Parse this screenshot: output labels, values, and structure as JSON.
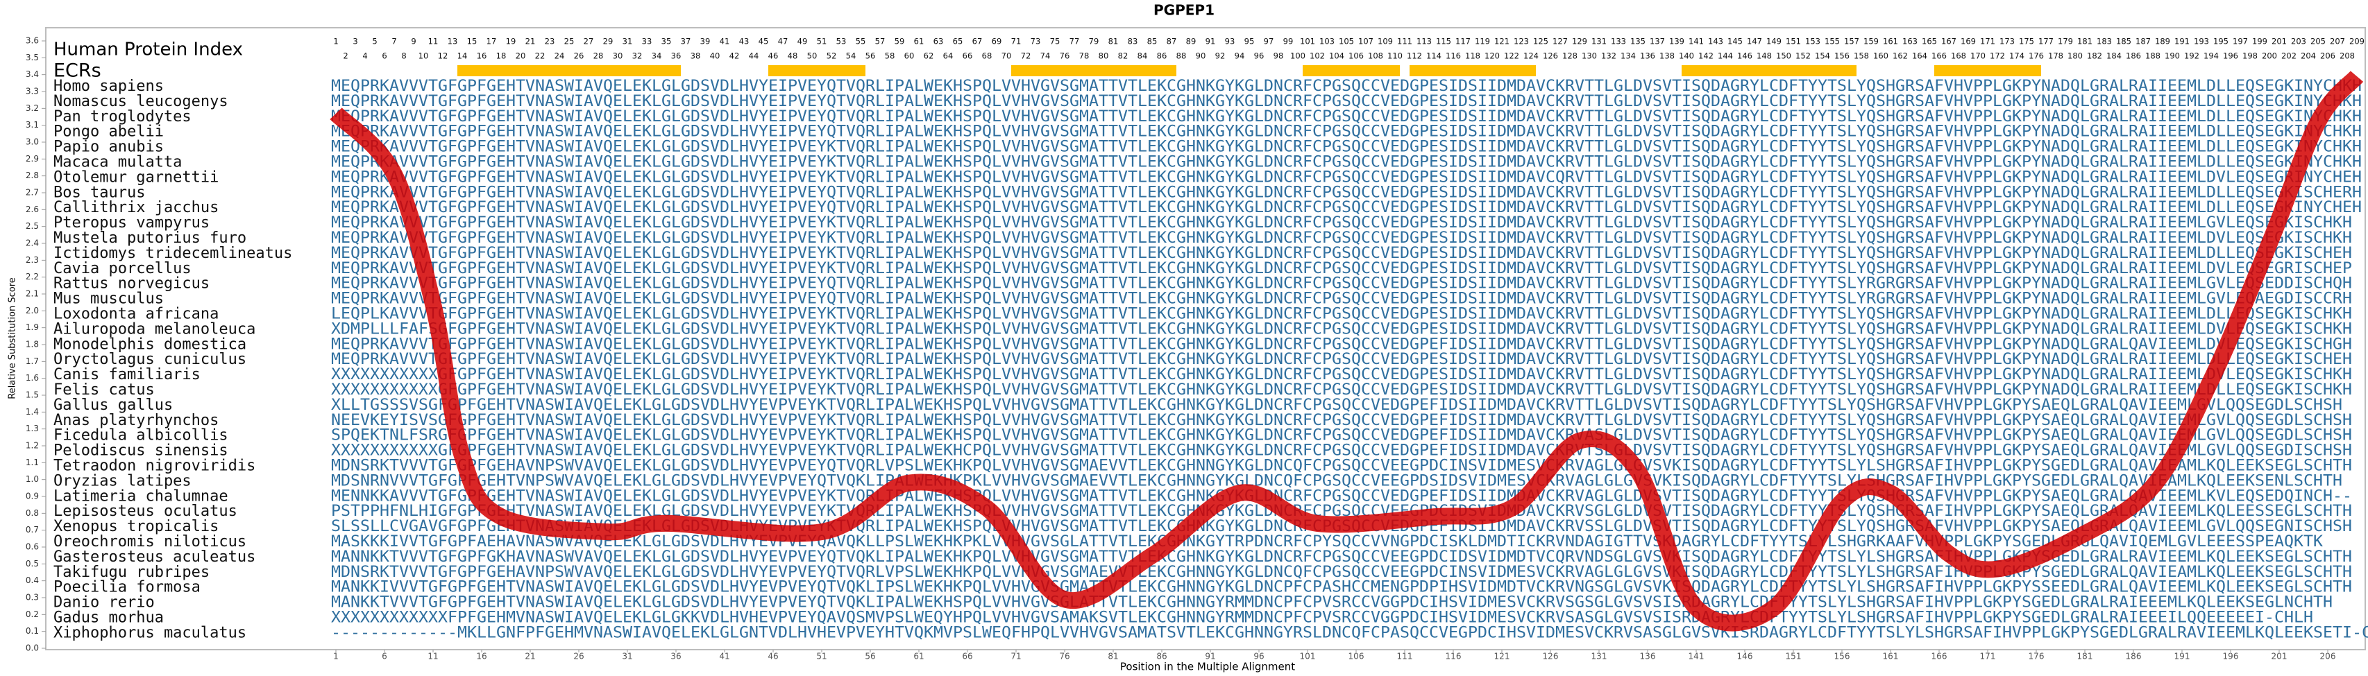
{
  "chart_data": {
    "type": "line",
    "title": "PGPEP1",
    "x_label": "Position in the Multiple Alignment",
    "y_label": "Relative Substitution Score",
    "xlim": [
      1,
      209
    ],
    "ylim": [
      0,
      3.6
    ],
    "xticks": [
      1,
      6,
      11,
      16,
      21,
      26,
      31,
      36,
      41,
      46,
      51,
      56,
      61,
      66,
      71,
      76,
      81,
      86,
      91,
      96,
      101,
      106,
      111,
      116,
      121,
      126,
      131,
      136,
      141,
      146,
      151,
      156,
      161,
      166,
      171,
      176,
      181,
      186,
      191,
      196,
      201,
      206
    ],
    "yticks": [
      {
        "value": 0,
        "label": "0.0"
      },
      0.1,
      0.2,
      0.3,
      0.4,
      0.5,
      0.6,
      0.7,
      0.8,
      0.9,
      {
        "value": 1,
        "label": "1.0"
      },
      1.1,
      1.2,
      1.3,
      1.4,
      1.5,
      1.6,
      1.7,
      1.8,
      1.9,
      {
        "value": 2,
        "label": "2.0"
      },
      2.1,
      2.2,
      2.3,
      2.4,
      2.5,
      2.6,
      2.7,
      2.8,
      2.9,
      {
        "value": 3,
        "label": "3.0"
      },
      3.1,
      3.2,
      3.3,
      3.4,
      3.5,
      3.6
    ],
    "x": [
      1,
      7,
      11,
      14,
      18,
      29,
      35,
      51,
      60,
      68,
      76,
      85,
      94,
      102,
      114,
      122,
      129,
      135,
      141,
      149,
      156,
      161,
      167,
      172,
      180,
      188,
      194,
      200,
      205,
      209
    ],
    "series": [
      {
        "color": "#d40000",
        "values": [
          3.17,
          2.81,
          2.04,
          1.14,
          0.78,
          0.69,
          0.74,
          0.69,
          0.98,
          0.83,
          0.29,
          0.55,
          0.92,
          0.74,
          0.78,
          0.83,
          1.23,
          1.05,
          0.24,
          0.24,
          0.87,
          0.92,
          0.56,
          0.47,
          0.65,
          0.96,
          1.59,
          2.4,
          3.12,
          3.39
        ]
      }
    ],
    "alignment": {
      "index_title": "Human Protein Index",
      "index": [
        1,
        2,
        3,
        4,
        5,
        6,
        7,
        8,
        9,
        10,
        11,
        12,
        13,
        14,
        15,
        16,
        17,
        18,
        19,
        20,
        21,
        22,
        23,
        24,
        25,
        26,
        27,
        28,
        29,
        30,
        31,
        32,
        33,
        34,
        35,
        36,
        37,
        38,
        39,
        40,
        41,
        42,
        43,
        44,
        45,
        46,
        47,
        48,
        49,
        50,
        51,
        52,
        53,
        54,
        55,
        56,
        57,
        58,
        59,
        60,
        61,
        62,
        63,
        64,
        65,
        66,
        67,
        68,
        69,
        70,
        71,
        72,
        73,
        74,
        75,
        76,
        77,
        78,
        79,
        80,
        81,
        82,
        83,
        84,
        85,
        86,
        87,
        88,
        89,
        90,
        91,
        92,
        93,
        94,
        95,
        96,
        97,
        98,
        99,
        100,
        101,
        102,
        103,
        104,
        105,
        106,
        107,
        108,
        109,
        110,
        111,
        112,
        113,
        114,
        115,
        116,
        117,
        118,
        119,
        120,
        121,
        122,
        123,
        124,
        125,
        126,
        127,
        128,
        129,
        130,
        131,
        132,
        133,
        134,
        135,
        136,
        137,
        138,
        139,
        140,
        141,
        142,
        143,
        144,
        145,
        146,
        147,
        148,
        149,
        150,
        151,
        152,
        153,
        154,
        155,
        156,
        157,
        158,
        159,
        160,
        161,
        162,
        163,
        164,
        165,
        166,
        167,
        168,
        169,
        170,
        171,
        172,
        173,
        174,
        175,
        176,
        177,
        178,
        179,
        180,
        181,
        182,
        183,
        184,
        185,
        186,
        187,
        188,
        189,
        190,
        191,
        192,
        193,
        194,
        195,
        196,
        197,
        198,
        199,
        200,
        201,
        202,
        203,
        204,
        205,
        206,
        207,
        208,
        209
      ],
      "ecr_label": "ECRs",
      "ecrs": [
        {
          "start": 14,
          "end": 36
        },
        {
          "start": 46,
          "end": 55
        },
        {
          "start": 71,
          "end": 87
        },
        {
          "start": 101,
          "end": 110
        },
        {
          "start": 112,
          "end": 124
        },
        {
          "start": 140,
          "end": 157
        },
        {
          "start": 166,
          "end": 176
        }
      ],
      "rows": [
        {
          "name": "Homo sapiens",
          "sequence": "MEQPRKAVVVTGFGPFGEHTVNASWIAVQELEKLGLGDSVDLHVYEIPVEYQTVQRLIPALWEKHSPQLVVHVGVSGMATTVTLEKCGHNKGYKGLDNCRFCPGSQCCVEDGPESIDSIIDMDAVCKRVTTLGLDVSVTISQDAGRYLCDFTYYTSLYQSHGRSAFVHVPPLGKPYNADQLGRALRAIIEEMLDLLEQSEGKINYCHKH"
        },
        {
          "name": "Nomascus leucogenys",
          "sequence": "MEQPRKAVVVTGFGPFGEHTVNASWIAVQELEKLGLGDSVDLHVYEIPVEYQTVQRLIPALWEKHSPQLVVHVGVSGMATTVTLEKCGHNKGYKGLDNCRFCPGSQCCVEDGPESIDSIIDMDAVCKRVTTLGLDVSVTISQDAGRYLCDFTYYTSLYQSHGRSAFVHVPPLGKPYNADQLGRALRAIIEEMLDLLEQSEGKINYCHKH"
        },
        {
          "name": "Pan troglodytes",
          "sequence": "MEQPRKAVVVTGFGPFGEHTVNASWIAVQELEKLGLGDSVDLHVYEIPVEYQTVQRLIPALWEKHSPQLVVHVGVSGMATTVTLEKCGHNKGYKGLDNCRFCPGSQCCVEDGPESIDSIIDMDAVCKRVTTLGLDVSVTISQDAGRYLCDFTYYTSLYQSHGRSAFVHVPPLGKPYNADQLGRALRAIIEEMLDLLEQSEGKINYCHKH"
        },
        {
          "name": "Pongo abelii",
          "sequence": "MEQPRKAVVVTGFGPFGEHTVNASWIAVQELEKLGLGDSVDLHVYEIPVEYQTVQRLIPALWEKHSPQLVVHVGVSGMATTVTLEKCGHNKGYKGLDNCRFCPGSQCCVEDGPESIDSIIDMDAVCKRVTTLGLDVSVTISQDAGRYLCDFTYYTSLYQSHGRSAFVHVPPLGKPYNADQLGRALRAIIEEMLDLLEQSEGKINYCHKH"
        },
        {
          "name": "Papio anubis",
          "sequence": "MEQPRKAVVVTGFGPFGEHTVNASWIAVQELEKLGLGDSVDLHVYEIPVEYKTVQRLIPALWEKHSPQLVVHVGVSGMATTVTLEKCGHNKGYKGLDNCRFCPGSQCCVEDGPESIDSIIDMDAVCKRVTTLGLDVSVTISQDAGRYLCDFTYYTSLYQSHGRSAFVHVPPLGKPYNADQLGRALRAIIEEMLDLLEQSEGKINYCHKH"
        },
        {
          "name": "Macaca mulatta",
          "sequence": "MEQPRKAVVVTGFGPFGEHTVNASWIAVQELEKLGLGDSVDLHVYEIPVEYKTVQRLIPALWEKHSPQLVVHVGVSGMATTVTLEKCGHNKGYKGLDNCRFCPGSQCCVEDGPESIDSIIDMDAVCKRVTTLGLDVSVTISQDAGRYLCDFTYYTSLYQSHGRSAFVHVPPLGKPYNADQLGRALRAIIEEMLDLLEQSEGKINYCHKH"
        },
        {
          "name": "Otolemur garnettii",
          "sequence": "MEQPRKAVVVTGFGPFGEHTVNASWIAVQELEKLGLGDSVDLHVYEIPVEYKTVQRLIPALWEKHSPQLVVHVGVSGMATTVTLEKCGHNKGYKGLDNCRFCPGSQCCVEDGPESIDSIIDMDAVCQRVTTLGLDVSVTISQDAGRYLCDFTYYTSLYQSHGRSAFVHVPPLGKPYNADQLGRALRAIIEEMLDVLEQSEGRINYCHEH"
        },
        {
          "name": "Bos taurus",
          "sequence": "MEQPRKAVVVTGFGPFGEHTVNASWIAVQELEKLGLGDSVDLHVYEIPVEYQTVQRLIPALWEKHSPQLVVHVGVSGMATTVTLEKCGHNKGYKGLDNCRFCPGSQCCVEDGPESIDSIIDMDAVCKRVTTLGLDVSVTISQDAGRYLCDFTYYTSLYQSHGRSAFVHVPPLGKPYNADQLGRALRAIIEEMLDLLEQSEGKISCHERH"
        },
        {
          "name": "Callithrix jacchus",
          "sequence": "MEQPRKAVVVTGFGPFGEHTVNASWIAVQELEKLGLGDSVDLHVYEIPVEYQTVQRLIPALWEKHSPQLVVHVGVSGMATTVTLEKCGHNKGYKGLDNCRFCPGSQCCVEDGPESIDSIIDMDAVCKRVTTLGLDVSVTISQDAGRYLCDFTYYTSLYQSHGRSAFVHVPPLGKPYNADQLGRALRAIIEEMLDLLEQSEGKINYCHEH"
        },
        {
          "name": "Pteropus vampyrus",
          "sequence": "MEQPRKAVVVTGFGPFGEHTVNASWIAVQELEKLGLGDSVDLHVYEIPVEYKTVQRLIPALWEKHSPQLVVHVGVSGMATTVTLEKCGHNKGYKGLDNCRFCPGSQCCVEDGPESIDSIIDMDAVCKRVTTLGLDVSVTISQDAGRYLCDFTYYTSLYQSHGRSAFVHVPPLGKPYNADQLGRALRAIIEEMLGVLEQSEGKISCHKH"
        },
        {
          "name": "Mustela putorius furo",
          "sequence": "MEQPRKAVVVTGFGPFGEHTVNASWIAVQELEKLGLGDSVDLHVYEIPVEYKTVQRLIPALWEKHSPQLVVHVGVSGMATTVTLEKCGHNKGYKGLDNCRFCPGSQCCVEDGPESIDSIIDMDAVCKRVTTLGLDVSVTISQDAGRYLCDFTYYTSLYQSHGRSAFVHVPPLGKPYNADQLGRALRAIIEEMLDVLEQSEGKISCHKH"
        },
        {
          "name": "Ictidomys tridecemlineatus",
          "sequence": "MEQPRKAVVVTGFGPFGEHTVNASWIAVQELEKLGLGDSVDLHVYEIPVEYKTVQRLIPALWEKHSPQLVVHVGVSGMATTVTLEKCGHNKGYKGLDNCRFCPGSQCCVEDGPESIDSIIDMDAVCKRVTTLGLDVSVTISQDAGRYLCDFTYYTSLYQSHGRSAFVHVPPLGKPYNADQLGRALRAIIEEMLDLLEQSEGKISCHEH"
        },
        {
          "name": "Cavia porcellus",
          "sequence": "MEQPRKAVVVTGFGPFGEHTVNASWIAVQELEKLGLGDSVDLHVYEIPVEYKTVQRLIPALWEKHSPQLVVHVGVSGMATTVTLEKCGHNKGYKGLDNCRFCPGSQCCVEDGPESIDSIIDMDAVCKRVTTLGLDVSVTISQDAGRYLCDFTYYTSLYQSHGRSAFVHVPPLGKPYNADQLGRALRAIIEEMLDVLEQSEGRISCHEP"
        },
        {
          "name": "Rattus norvegicus",
          "sequence": "MEQPRKAVVVTGFGPFGEHTVNASWIAVQELEKLGLGDSVDLHVYEIPVEYQTVQRLIPALWEKHSPQLVVHVGVSGMATTVTLEKCGHNKGYKGLDNCRFCPGSQCCVEDGPESIDSIIDMDAVCKRVTTLGLDVSVTISQDAGRYLCDFTYYTSLYRGRGRSAFVHVPPLGKPYNADQLGRALRAIIEEMLGVLEQSEDDISCHQH"
        },
        {
          "name": "Mus musculus",
          "sequence": "MEQPRKAVVVTGFGPFGEHTVNASWIAVQELEKLGLGDSVDLHVYEIPVEYQTVQRLIPALWEKHSPQLVVHVGVSGMATTVTLEKCGHNKGYKGLDNCRFCPGSQCCVEDGPESIDSIIDMDAVCKRVTTLGLDVSVTISQDAGRYLCDFTYYTSLYRGRGRSAFVHVPPLGKPYNADQLGRALRAIIEEMLGVLEQAEGDISCCRH"
        },
        {
          "name": "Loxodonta africana",
          "sequence": "LEQPLKAVVVTGFGPFGEHTVNASWIAVQELEKLGLGDSVDLHVYEIPVEYKTVQRLIPALWEKHSPQLVVHVGVSGMATTVTLEKCGHNKGYKGLDNCRFCPGSQCCVEDGPESIDSIIDMDAVCKRVTTLGLDVSVTISQDAGRYLCDFTYYTSLYQSHGRSAFVHVPPLGKPYNADQLGRALRAIIEEMLDLLEQSEGKISCHKH"
        },
        {
          "name": "Ailuropoda melanoleuca",
          "sequence": "XDMPLLLFAFSGFGPFGEHTVNASWIAVQELEKLGLGDSVDLHVYEIPVEYKTVQRLIPALWEKHSPQLVVHVGVSGMATTVTLEKCGHNKGYKGLDNCRFCPGSQCCVEDGPESIDSIIDMDAVCKRVTTLGLDVSVTISQDAGRYLCDFTYYTSLYQSHGRSAFVHVPPLGKPYNADQLGRALRAIIEEMLDVLEQSEGKISCHKH"
        },
        {
          "name": "Monodelphis domestica",
          "sequence": "MEQPRKAVVVTGFGPFGEHTVNASWIAVQELEKLGLGDSVDLHVYEIPVEYKTVQRLIPALWEKHSPQLVVHVGVSGMATTVTLEKCGHNKGYKGLDNCRFCPGSQCCVEDGPEFIDSIIDMDAVCKRVTTLGLDVSVTISQDAGRYLCDFTYYTSLYQSHGRSAFVHVPPLGKPYNADQLGRALQAVIEEMLDVLEQSEGKISCHGH"
        },
        {
          "name": "Oryctolagus cuniculus",
          "sequence": "MEQPRKAVVVTGFGPFGEHTVNASWIAVQELEKLGLGDSVDLHVYEIPVEYKTVQRLIPALWEKHSPQLVVHVGVSGMATTVTLEKCGHNKGYKGLDNCRFCPGSQCCVEDGPESIDSIIDMDAVCKRVTTLGLDVSVTISQDAGRYLCDFTYYTSLYQSHGRSAFVHVPPLGKPYNADQLGRALRAIIEEMLDLLEQSEGKISCHEH"
        },
        {
          "name": "Canis familiaris",
          "sequence": "XXXXXXXXXXXGFGPFGEHTVNASWIAVQELEKLGLGDSVDLHVYEIPVEYKTVQRLIPALWEKHSPQLVVHVGVSGMATTVTLEKCGHNKGYKGLDNCRFCPGSQCCVEDGPESIDSIIDMDAVCKRVTTLGLDVSVTISQDAGRYLCDFTYYTSLYQSHGRSAFVHVPPLGKPYNADQLGRALRAIIEEMLDVLEQSEGKISCHKH"
        },
        {
          "name": "Felis catus",
          "sequence": "XXXXXXXXXXXGFGPFGEHTVNASWIAVQELEKLGLGDSVDLHVYEIPVEYKTVQRLIPALWEKHSPQLVVHVGVSGMATTVTLEKCGHNKGYKGLDNCRFCPGSQCCVEDGPESIDSIIDMDAVCKRVTTLGLDVSVTISQDAGRYLCDFTYYTSLYQSHGRSAFVHVPPLGKPYNADQLGRALRAIIEEMLDLLEQSEGKISCHKH"
        },
        {
          "name": "Gallus gallus",
          "sequence": "XLLTGSSSVSGFGPFGEHTVNASWIAVQELEKLGLGDSVDLHVYEVPVEYKTVQRLIPALWEKHSPQLVVHVGVSGMATTVTLEKCGHNKGYKGLDNCRFCPGSQCCVEDGPEFIDSIIDMDAVCKRVTTLGLDVSVTISQDAGRYLCDFTYYTSLYQSHGRSAFVHVPPLGKPYSAEQLGRALQAVIEEMLGVLQQSEGDLSCHSH"
        },
        {
          "name": "Anas platyrhynchos",
          "sequence": "NEEVKEYISVSGFGPFGEHTVNASWIAVQELEKLGLGDSVDLHVYEVPVEYKTVQRLIPALWEKHSPQLVVHVGVSGMATTVTLEKCGHNKGYKGLDNCRFCPGSQCCVEDGPEFIDSIIDMDAVCKRVTTLGLDVSVTISQDAGRYLCDFTYYTSLYQSHGRSAFVHVPPLGKPYSAEQLGRALQAVIEEMLGVLQQSEGDLSCHSH"
        },
        {
          "name": "Ficedula albicollis",
          "sequence": "SPQEKTNLFSRGFGPFGEHTVNASWIAVQELEKLGLGDSVDLHVYEVPVEYKTVQRLIPALWEKHSPQLVVHVGVSGMATTVTLEKCGHNKGYKGLDNCRFCPGSQCCVEDGPEFIDSIIDMDAVCKRVASLGLDVSVTISQDAGRYLCDFTYYTSLYQSHGRSAFVHVPPLGKPYSAEQLGRALQAVIEEMLGVLQQSEGDLSCHSH"
        },
        {
          "name": "Pelodiscus sinensis",
          "sequence": "XXXXXXXXXXXGFGPFGEHTVNASWIAVQELEKLGLGDSVDLHVYEVPVEYKTVQRLIPALWEKHCPQLVVHVGVSGMATTVTLEKCGHNKGYKGLDNCRFCPGSQCCVEDGPEFIDSIIDMDAVCKRVTSLGLDVSVTISQDAGRYLCDFTYYTSLYQSHGRSAFVHVPPLGKPYSAEQLGRALQAVIEEMLGVLQQSEGDISCHSH"
        },
        {
          "name": "Tetraodon nigroviridis",
          "sequence": "MDNSRKTVVVTGFGPFGEHAVNPSWVAVQELEKLGLGDSVDLHVYEVPVEYQTVQRLVPSLWEKHKPQLVVHVGVSGMAEVVTLEKCGHNNGYKGLDNCQFCPGSQCCVEEGPDCINSVIDMESVCKRVAGLGLGVSVKISQDAGRYLCDFTYYTSLYLSHGRSAFIHVPPLGKPYSGEDLGRALQAVIEAMLKQLEEKSEGLSCHTH"
        },
        {
          "name": "Oryzias latipes",
          "sequence": "MDSNRNVVVTGFGPFGEHTVNPSWVAVQELEKLGLGDSVDLHVYEVPVEYQTVQKLIPALWEKHKPKLVVHVGVSGMAEVVTLEKCGHNNGYKGLDNCQFCPGSQCCVEEGPDSIDSVIDMESVCKRVAGLGLGVSVKISQDAGRYLCDFTYYTSLYLSHGRSAFIHVPPLGKPYSGEDLGRALQAVIEAMLKQLEEKSENLSCHTH"
        },
        {
          "name": "Latimeria chalumnae",
          "sequence": "MENNKKAVVVTGFGPFGEHTVNASWIAVQELEKLGLGDSVDLHVYEVPVEYKTVQRLIPALWEKHSPQLVVHVGVSGMATTVTLEKCGHNKGYKGLDNCRFCPGSQCCVEDGPEFIDSIIDMDAVCKRVAGLGLDVSVTISQDAGRYLCDFTYYTSLYQSHGRSAFVHVPPLGKPYSAEQLGRALQAVIEEMLKVLEQSEDQINCH--"
        },
        {
          "name": "Lepisosteus oculatus",
          "sequence": "PSTPPHFNLHIGFGPFGEHTVNASWIAVQELEKLGLGDSVDLHVYEVPVEYKTVQRLIPALWEKHSPQLVVHVGVSGMATTVTLEKCGHNKGYKGLDNCRFCPGSQCCVEEGPDCIDSVIDMDAVCKRVSGLGLDVSVTISQDAGRYLCDFTYYTSLYQSHGRSAFIHVPPLGKPYSAEQLGRALQAVIEEMLKQLEESSEGLSCHTH"
        },
        {
          "name": "Xenopus tropicalis",
          "sequence": "SLSSLLCVGAVGFGPFGEHTVNASWIAVQELEKLGLGDSVDLHVYEVPVEYKTVQRLIPALWEKHSPQLVVHVGVSGMATTVTLEKCGHNKGYKGLDNCRFCPGSQCCVEDGPEFIDSIIDMDAVCKRVSSLGLDVSVTISQDAGRYLCDFTYYTSLYQSHGRSAFVHVPPLGKPYSAEQLGRALQAVIEEMLGVLQQSEGNISCHSH"
        },
        {
          "name": "Oreochromis niloticus",
          "sequence": "MASKKKIVVTGFGPFAEHAVNASWVAVQELEKLGLGDSVDLHVYEVPVEYQAVQKLLPSLWEKHKPKLVVHVGVSGLATTVTLEKCGHNKGYTRPDNCRFCPYSQCCVVNGPDCISKLDMDTICKRVNDAGIGTTVSKDAGRYLCDFTYYTSLYLSHGRKAAFVHVPPLGKPYSGEDLGRGLQAVIQEMLGVLEEESSPEAQKTK"
        },
        {
          "name": "Gasterosteus aculeatus",
          "sequence": "MANNKKTVVVTGFGPFGKHAVNASWVAVQELEKLGLGDSVDLHVYEVPVEYQTVQKLIPALWEKHKPQLVVHVGVSGMATTVTLEKCGHNKGYKGLDNCRFCPGSQCCVEEGPDCIDSVIDMDTVCQRVNDSGLGVSVKISQDAGRYLCDFTYYTSLYLSHGRSAFIHVPPLGKPYSGEDLGRALRAVIEEMLKQLEEKSEGLSCHTH"
        },
        {
          "name": "Takifugu rubripes",
          "sequence": "MDNSRKTVVVTGFGPFGEHAVNPSWVAVQELEKLGLGDSVDLHVYEVPVEYQTVQRLVPSLWEKHKPQLVVHVGVSGMAEVVTLEKCGHNNGYKGLDNCQFCPGSQCCVEEGPDCINSVIDMESVCKRVAGLGLGVSVKISQDAGRYLCDFTYYTSLYLSHGRSAFIHVPPLGKPYSGEDLGRALQAVIEAMLKQLEEKSEGLSCHTH"
        },
        {
          "name": "Poecilia formosa",
          "sequence": "MANKKIVVVTGFGPFGEHTVNASWIAVQELEKLGLGDSVDLHVYEVPVEYQTVQKLIPSLWEKHKPQLVVHVGVSGMATTVTLEKCGHNNGYKGLDNCPFCPASHCCMENGPDPIHSVIDMDTVCKRVNGSGLGVSVKISQDAGRYLCDFTYYTSLYLSHGRSAFIHVPPLGKPYSSEEDLGRALQAVIEEMLKQLEEKSEGLSCHTH"
        },
        {
          "name": "Danio rerio",
          "sequence": "MANKKTVVVTGFGPFGEHTVNASWIAVQELEKLGLGDSVDLHVYEVPVEYQTVQKLIPALWEKHSPQLVVHVGVSGLATTVTLEKCGHNNGYRMMDNCPFCPVSRCCVGGPDCIHSVIDMESVCKRVSGSGLGVSVSISRDAGRYLCDFTYYTSLYLSHGRSAFIHVPPLGKPYSGEDLGRALRAIEEEMLKQLEEKSEGLNCHTH"
        },
        {
          "name": "Gadus morhua",
          "sequence": "XXXXXXXXXXXXFPFGEHMVNASWIAVQELEKLGLGKKVDLHVHEVPVEYQAVQSMVPSLWEQYHPQLVVHVGVSAMAKSVTLEKCGHNNGYRMMDNCPFCPVSRCCVGGPDCIHSVIDMESVCKRVSASGLGVSVSISRDAGRYLCDFTYYTSLYLSHGRSAFIHVPPLGKPYSGEDLGRALRAIEEEILQQEEEEEI-CHLH"
        },
        {
          "name": "Xiphophorus maculatus",
          "sequence": "-------------MKLLGNFPFGEHMVNASWIAVQELEKLGLGNTVDLHVHEVPVEYHTVQKMVPSLWEQFHPQLVVHVGVSAMATSVTLEKCGHNNGYRSLDNCQFCPASQCCVEGPDCIHSVIDMESVCKRVSASGLGVSVKISRDAGRYLCDFTYYTSLYLSHGRSAFIHVPPLGKPYSGEDLGRALRAVIEEMLKQLEEKSETI-CHTH"
        }
      ]
    }
  }
}
